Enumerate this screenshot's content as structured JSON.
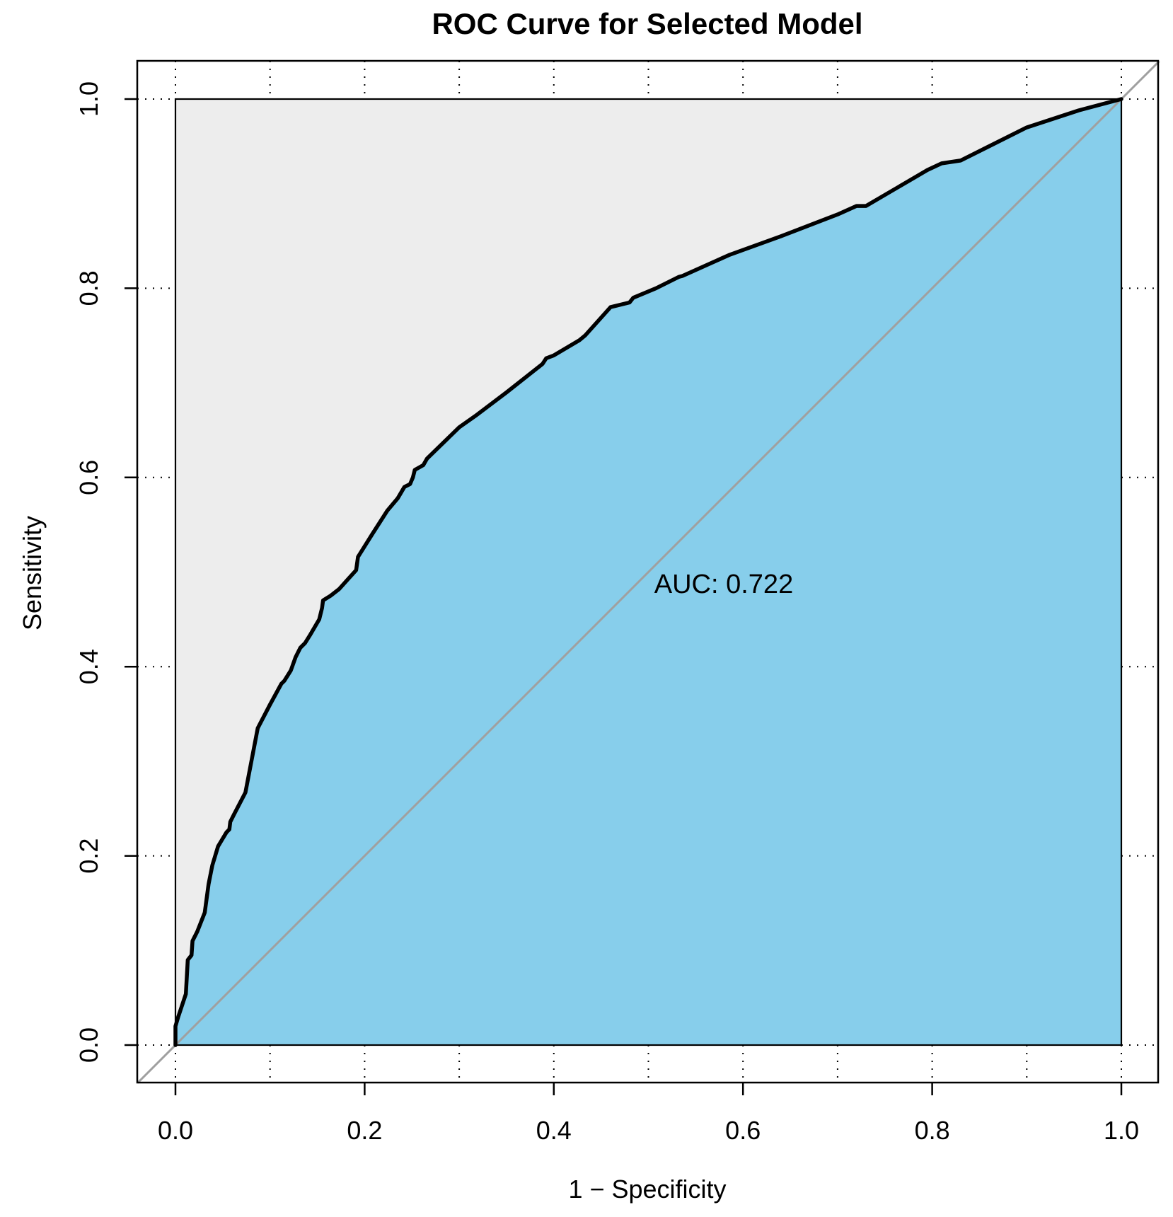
{
  "chart_data": {
    "type": "area",
    "title": "ROC Curve for Selected Model",
    "xlabel": "1 − Specificity",
    "ylabel": "Sensitivity",
    "xlim": [
      -0.04,
      1.04
    ],
    "ylim": [
      -0.04,
      1.04
    ],
    "x_ticks": [
      "0.0",
      "0.2",
      "0.4",
      "0.6",
      "0.8",
      "1.0"
    ],
    "y_ticks": [
      "0.0",
      "0.2",
      "0.4",
      "0.6",
      "0.8",
      "1.0"
    ],
    "grid": true,
    "annotation": "AUC: 0.722",
    "auc": 0.722,
    "colors": {
      "auc_fill": "#87CEEB",
      "unit_square_fill": "#EDEDED",
      "curve": "#000000",
      "diagonal": "#A0A0A0"
    },
    "series": [
      {
        "x": [
          0.0,
          0.0,
          0.003,
          0.011,
          0.013,
          0.017,
          0.018,
          0.023,
          0.031,
          0.035,
          0.039,
          0.045,
          0.048,
          0.054,
          0.057,
          0.058,
          0.062,
          0.074,
          0.087,
          0.1,
          0.112,
          0.115,
          0.122,
          0.127,
          0.132,
          0.137,
          0.142,
          0.152,
          0.155,
          0.156,
          0.164,
          0.173,
          0.182,
          0.191,
          0.193,
          0.208,
          0.224,
          0.235,
          0.242,
          0.248,
          0.251,
          0.253,
          0.262,
          0.266,
          0.3,
          0.317,
          0.35,
          0.388,
          0.392,
          0.4,
          0.427,
          0.433,
          0.46,
          0.48,
          0.484,
          0.508,
          0.532,
          0.536,
          0.585,
          0.64,
          0.7,
          0.72,
          0.73,
          0.795,
          0.81,
          0.83,
          0.9,
          0.955,
          1.0
        ],
        "y": [
          0.0,
          0.02,
          0.03,
          0.054,
          0.09,
          0.095,
          0.11,
          0.12,
          0.14,
          0.17,
          0.19,
          0.21,
          0.215,
          0.225,
          0.228,
          0.236,
          0.244,
          0.267,
          0.335,
          0.36,
          0.382,
          0.385,
          0.396,
          0.41,
          0.42,
          0.425,
          0.433,
          0.45,
          0.462,
          0.47,
          0.475,
          0.482,
          0.492,
          0.502,
          0.516,
          0.54,
          0.565,
          0.578,
          0.59,
          0.593,
          0.6,
          0.608,
          0.613,
          0.62,
          0.653,
          0.665,
          0.69,
          0.72,
          0.726,
          0.729,
          0.745,
          0.75,
          0.78,
          0.785,
          0.79,
          0.8,
          0.812,
          0.813,
          0.835,
          0.855,
          0.878,
          0.887,
          0.887,
          0.925,
          0.932,
          0.935,
          0.97,
          0.988,
          1.0
        ]
      }
    ]
  }
}
